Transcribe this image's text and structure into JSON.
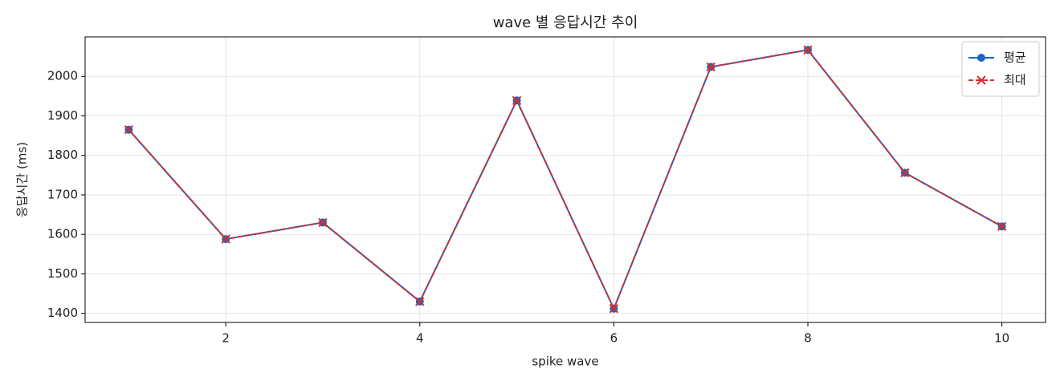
{
  "chart_data": {
    "type": "line",
    "title": "wave 별 응답시간 추이",
    "x_label": "spike wave",
    "y_label": "응답시간 (ms)",
    "x": [
      1,
      2,
      3,
      4,
      5,
      6,
      7,
      8,
      9,
      10
    ],
    "series": [
      {
        "name": "평균",
        "color": "#1f66c1",
        "marker": "o",
        "linestyle": "solid",
        "values": [
          1865,
          1588,
          1630,
          1430,
          1939,
          1412,
          2024,
          2067,
          1756,
          1620
        ]
      },
      {
        "name": "최대",
        "color": "#d03030",
        "marker": "x",
        "linestyle": "dashed",
        "values": [
          1865,
          1588,
          1630,
          1430,
          1939,
          1412,
          2024,
          2067,
          1756,
          1620
        ]
      }
    ],
    "xlim": [
      0.55,
      10.45
    ],
    "xticks": [
      2,
      4,
      6,
      8,
      10
    ],
    "ylim": [
      1377,
      2100
    ],
    "yticks": [
      1400,
      1500,
      1600,
      1700,
      1800,
      1900,
      2000
    ],
    "grid": true,
    "legend": "upper right"
  }
}
